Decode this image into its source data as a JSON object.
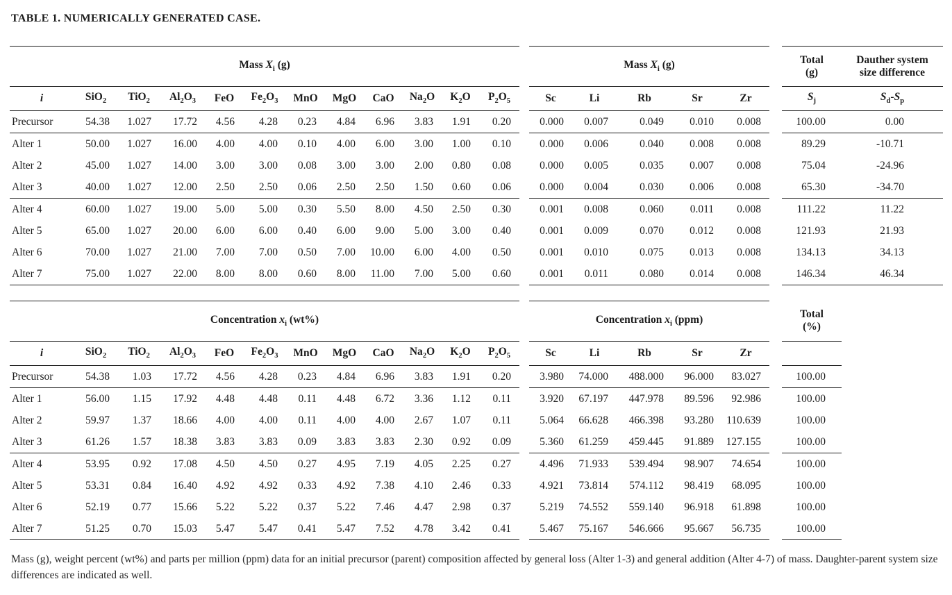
{
  "title": "TABLE 1. NUMERICALLY GENERATED CASE.",
  "caption": "Mass (g), weight percent (wt%) and parts per million (ppm) data for an initial precursor (parent) composition affected by general loss (Alter 1-3) and general addition (Alter 4-7) of mass. Daughter-parent system size differences are indicated as well.",
  "tables": [
    {
      "id": "mass",
      "majors_label": "Mass *X*_i_ (g)",
      "traces_label": "Mass *X*_i_ (g)",
      "total_label": "Total|(g)",
      "extra_label": "Dauther system|size difference",
      "total_sub": "*S*_j_",
      "extra_sub": "*S*_d_-*S*_p_",
      "columns": [
        "*i*",
        "SiO_2_",
        "TiO_2_",
        "Al_2_O_3_",
        "FeO",
        "Fe_2_O_3_",
        "MnO",
        "MgO",
        "CaO",
        "Na_2_O",
        "K_2_O",
        "P_2_O_5_",
        "Sc",
        "Li",
        "Rb",
        "Sr",
        "Zr"
      ],
      "rows": [
        {
          "label": "Precursor",
          "majors": [
            "54.38",
            "1.027",
            "17.72",
            "4.56",
            "4.28",
            "0.23",
            "4.84",
            "6.96",
            "3.83",
            "1.91",
            "0.20"
          ],
          "traces": [
            "0.000",
            "0.007",
            "0.049",
            "0.010",
            "0.008"
          ],
          "total": "100.00",
          "extra": "0.00",
          "rule_after": true
        },
        {
          "label": "Alter 1",
          "majors": [
            "50.00",
            "1.027",
            "16.00",
            "4.00",
            "4.00",
            "0.10",
            "4.00",
            "6.00",
            "3.00",
            "1.00",
            "0.10"
          ],
          "traces": [
            "0.000",
            "0.006",
            "0.040",
            "0.008",
            "0.008"
          ],
          "total": "89.29",
          "extra": "-10.71",
          "rule_after": false
        },
        {
          "label": "Alter 2",
          "majors": [
            "45.00",
            "1.027",
            "14.00",
            "3.00",
            "3.00",
            "0.08",
            "3.00",
            "3.00",
            "2.00",
            "0.80",
            "0.08"
          ],
          "traces": [
            "0.000",
            "0.005",
            "0.035",
            "0.007",
            "0.008"
          ],
          "total": "75.04",
          "extra": "-24.96",
          "rule_after": false
        },
        {
          "label": "Alter 3",
          "majors": [
            "40.00",
            "1.027",
            "12.00",
            "2.50",
            "2.50",
            "0.06",
            "2.50",
            "2.50",
            "1.50",
            "0.60",
            "0.06"
          ],
          "traces": [
            "0.000",
            "0.004",
            "0.030",
            "0.006",
            "0.008"
          ],
          "total": "65.30",
          "extra": "-34.70",
          "rule_after": true
        },
        {
          "label": "Alter 4",
          "majors": [
            "60.00",
            "1.027",
            "19.00",
            "5.00",
            "5.00",
            "0.30",
            "5.50",
            "8.00",
            "4.50",
            "2.50",
            "0.30"
          ],
          "traces": [
            "0.001",
            "0.008",
            "0.060",
            "0.011",
            "0.008"
          ],
          "total": "111.22",
          "extra": "11.22",
          "rule_after": false
        },
        {
          "label": "Alter 5",
          "majors": [
            "65.00",
            "1.027",
            "20.00",
            "6.00",
            "6.00",
            "0.40",
            "6.00",
            "9.00",
            "5.00",
            "3.00",
            "0.40"
          ],
          "traces": [
            "0.001",
            "0.009",
            "0.070",
            "0.012",
            "0.008"
          ],
          "total": "121.93",
          "extra": "21.93",
          "rule_after": false
        },
        {
          "label": "Alter 6",
          "majors": [
            "70.00",
            "1.027",
            "21.00",
            "7.00",
            "7.00",
            "0.50",
            "7.00",
            "10.00",
            "6.00",
            "4.00",
            "0.50"
          ],
          "traces": [
            "0.001",
            "0.010",
            "0.075",
            "0.013",
            "0.008"
          ],
          "total": "134.13",
          "extra": "34.13",
          "rule_after": false
        },
        {
          "label": "Alter 7",
          "majors": [
            "75.00",
            "1.027",
            "22.00",
            "8.00",
            "8.00",
            "0.60",
            "8.00",
            "11.00",
            "7.00",
            "5.00",
            "0.60"
          ],
          "traces": [
            "0.001",
            "0.011",
            "0.080",
            "0.014",
            "0.008"
          ],
          "total": "146.34",
          "extra": "46.34",
          "rule_after": true
        }
      ]
    },
    {
      "id": "concentration",
      "majors_label": "Concentration *x*_i_ (wt%)",
      "traces_label": "Concentration *x*_i_ (ppm)",
      "total_label": "Total|(%)",
      "total_sub": "",
      "columns": [
        "*i*",
        "SiO_2_",
        "TiO_2_",
        "Al_2_O_3_",
        "FeO",
        "Fe_2_O_3_",
        "MnO",
        "MgO",
        "CaO",
        "Na_2_O",
        "K_2_O",
        "P_2_O_5_",
        "Sc",
        "Li",
        "Rb",
        "Sr",
        "Zr"
      ],
      "rows": [
        {
          "label": "Precursor",
          "majors": [
            "54.38",
            "1.03",
            "17.72",
            "4.56",
            "4.28",
            "0.23",
            "4.84",
            "6.96",
            "3.83",
            "1.91",
            "0.20"
          ],
          "traces": [
            "3.980",
            "74.000",
            "488.000",
            "96.000",
            "83.027"
          ],
          "total": "100.00",
          "rule_after": true
        },
        {
          "label": "Alter 1",
          "majors": [
            "56.00",
            "1.15",
            "17.92",
            "4.48",
            "4.48",
            "0.11",
            "4.48",
            "6.72",
            "3.36",
            "1.12",
            "0.11"
          ],
          "traces": [
            "3.920",
            "67.197",
            "447.978",
            "89.596",
            "92.986"
          ],
          "total": "100.00",
          "rule_after": false
        },
        {
          "label": "Alter 2",
          "majors": [
            "59.97",
            "1.37",
            "18.66",
            "4.00",
            "4.00",
            "0.11",
            "4.00",
            "4.00",
            "2.67",
            "1.07",
            "0.11"
          ],
          "traces": [
            "5.064",
            "66.628",
            "466.398",
            "93.280",
            "110.639"
          ],
          "total": "100.00",
          "rule_after": false
        },
        {
          "label": "Alter 3",
          "majors": [
            "61.26",
            "1.57",
            "18.38",
            "3.83",
            "3.83",
            "0.09",
            "3.83",
            "3.83",
            "2.30",
            "0.92",
            "0.09"
          ],
          "traces": [
            "5.360",
            "61.259",
            "459.445",
            "91.889",
            "127.155"
          ],
          "total": "100.00",
          "rule_after": true
        },
        {
          "label": "Alter 4",
          "majors": [
            "53.95",
            "0.92",
            "17.08",
            "4.50",
            "4.50",
            "0.27",
            "4.95",
            "7.19",
            "4.05",
            "2.25",
            "0.27"
          ],
          "traces": [
            "4.496",
            "71.933",
            "539.494",
            "98.907",
            "74.654"
          ],
          "total": "100.00",
          "rule_after": false
        },
        {
          "label": "Alter 5",
          "majors": [
            "53.31",
            "0.84",
            "16.40",
            "4.92",
            "4.92",
            "0.33",
            "4.92",
            "7.38",
            "4.10",
            "2.46",
            "0.33"
          ],
          "traces": [
            "4.921",
            "73.814",
            "574.112",
            "98.419",
            "68.095"
          ],
          "total": "100.00",
          "rule_after": false
        },
        {
          "label": "Alter 6",
          "majors": [
            "52.19",
            "0.77",
            "15.66",
            "5.22",
            "5.22",
            "0.37",
            "5.22",
            "7.46",
            "4.47",
            "2.98",
            "0.37"
          ],
          "traces": [
            "5.219",
            "74.552",
            "559.140",
            "96.918",
            "61.898"
          ],
          "total": "100.00",
          "rule_after": false
        },
        {
          "label": "Alter 7",
          "majors": [
            "51.25",
            "0.70",
            "15.03",
            "5.47",
            "5.47",
            "0.41",
            "5.47",
            "7.52",
            "4.78",
            "3.42",
            "0.41"
          ],
          "traces": [
            "5.467",
            "75.167",
            "546.666",
            "95.667",
            "56.735"
          ],
          "total": "100.00",
          "rule_after": true
        }
      ]
    }
  ]
}
